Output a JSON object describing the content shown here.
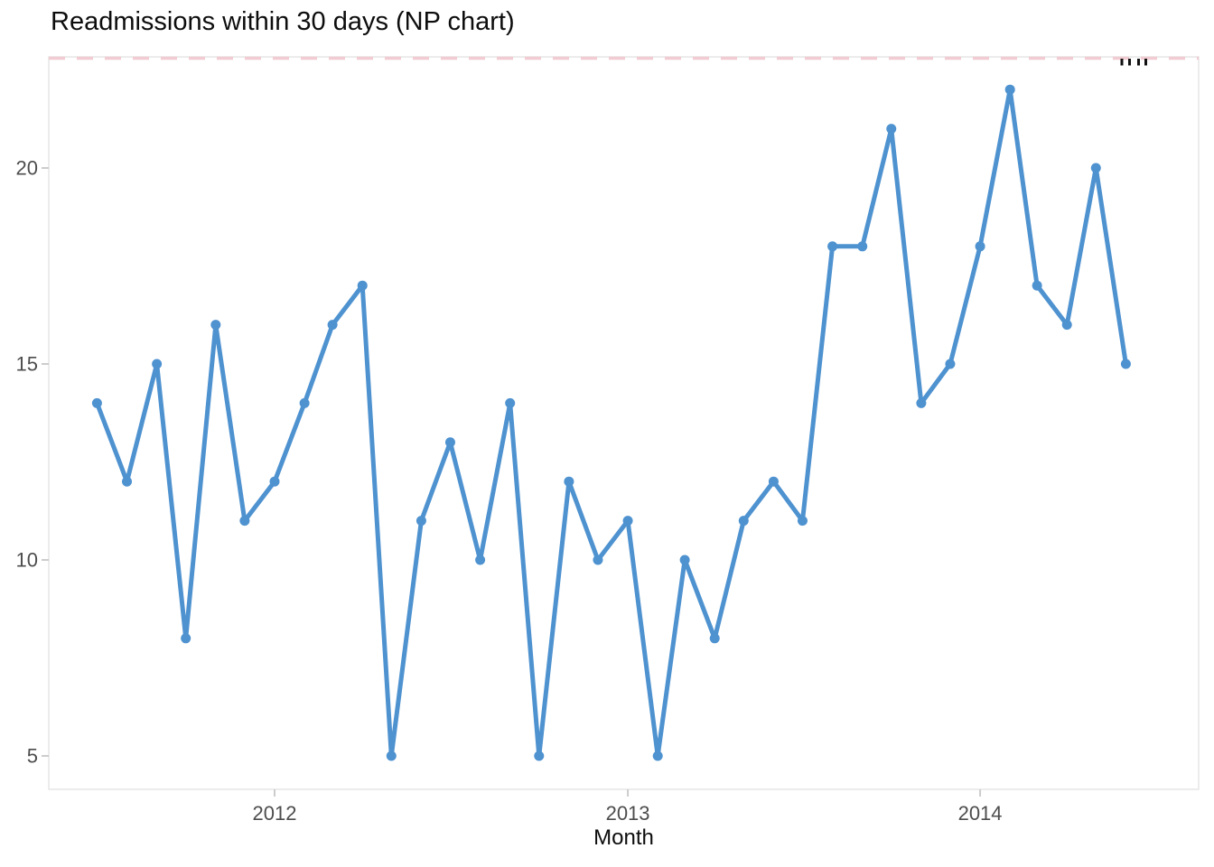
{
  "chart_data": {
    "type": "line",
    "title": "Readmissions within 30 days (NP chart)",
    "xlabel": "Month",
    "ylabel": "",
    "series_name": "Readmissions within 30 days",
    "x": [
      "2011-07",
      "2011-08",
      "2011-09",
      "2011-10",
      "2011-11",
      "2011-12",
      "2012-01",
      "2012-02",
      "2012-03",
      "2012-04",
      "2012-05",
      "2012-06",
      "2012-07",
      "2012-08",
      "2012-09",
      "2012-10",
      "2012-11",
      "2012-12",
      "2013-01",
      "2013-02",
      "2013-03",
      "2013-04",
      "2013-05",
      "2013-06",
      "2013-07",
      "2013-08",
      "2013-09",
      "2013-10",
      "2013-11",
      "2013-12",
      "2014-01",
      "2014-02",
      "2014-03",
      "2014-04",
      "2014-05",
      "2014-06"
    ],
    "values": [
      14,
      12,
      15,
      8,
      16,
      11,
      12,
      14,
      16,
      17,
      5,
      11,
      13,
      10,
      14,
      5,
      12,
      10,
      11,
      5,
      10,
      8,
      11,
      12,
      11,
      18,
      18,
      21,
      14,
      15,
      18,
      22,
      17,
      16,
      20,
      15
    ],
    "control_limits": {
      "ucl": 22.8,
      "ucl_style": "dashed"
    },
    "y_ticks": [
      5,
      10,
      15,
      20
    ],
    "x_tick_labels": [
      "2012",
      "2013",
      "2014"
    ],
    "x_tick_dates": [
      "2012-01",
      "2013-01",
      "2014-01"
    ],
    "ylim": [
      4.2,
      22.9
    ],
    "grid": "off",
    "legend": "none",
    "colors": {
      "line": "#4e92d0",
      "ucl": "#f2ccd3",
      "panel_border": "#e6e6e6",
      "tick_mark": "#cccccc",
      "axis_text": "#4d4d4d",
      "title_text": "#0d0d0d"
    },
    "top_right_clipped_marks": 4
  }
}
